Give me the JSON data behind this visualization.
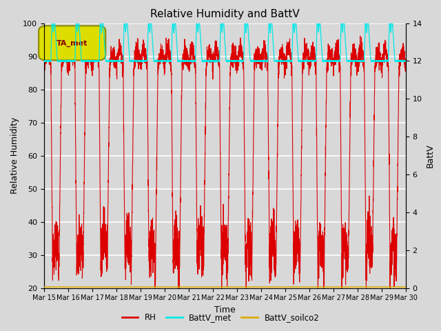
{
  "title": "Relative Humidity and BattV",
  "xlabel": "Time",
  "ylabel_left": "Relative Humidity",
  "ylabel_right": "BattV",
  "ylim_left": [
    20,
    100
  ],
  "ylim_right": [
    0,
    14
  ],
  "yticks_left": [
    20,
    30,
    40,
    50,
    60,
    70,
    80,
    90,
    100
  ],
  "yticks_right": [
    0,
    2,
    4,
    6,
    8,
    10,
    12,
    14
  ],
  "xtick_labels": [
    "Mar 15",
    "Mar 16",
    "Mar 17",
    "Mar 18",
    "Mar 19",
    "Mar 20",
    "Mar 21",
    "Mar 22",
    "Mar 23",
    "Mar 24",
    "Mar 25",
    "Mar 26",
    "Mar 27",
    "Mar 28",
    "Mar 29",
    "Mar 30"
  ],
  "bg_color": "#d8d8d8",
  "plot_bg_color": "#d8d8d8",
  "rh_color": "#dd0000",
  "battv_met_color": "#00e8e8",
  "battv_soilco2_color": "#ddaa00",
  "legend_box_facecolor": "#dddd00",
  "legend_box_edgecolor": "#888800",
  "legend_box_text": "TA_met",
  "legend_box_text_color": "#880000",
  "n_days": 15,
  "pts_per_day": 288
}
